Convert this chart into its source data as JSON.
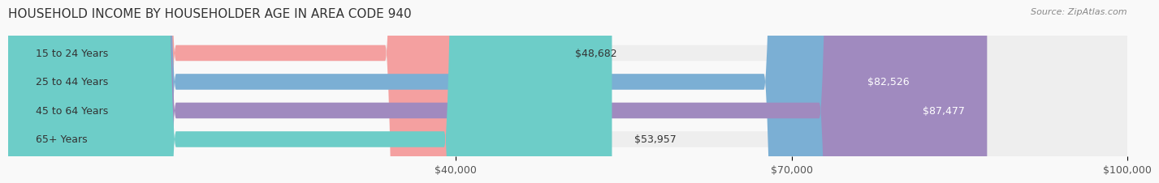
{
  "title": "HOUSEHOLD INCOME BY HOUSEHOLDER AGE IN AREA CODE 940",
  "source": "Source: ZipAtlas.com",
  "categories": [
    "15 to 24 Years",
    "25 to 44 Years",
    "45 to 64 Years",
    "65+ Years"
  ],
  "values": [
    48682,
    82526,
    87477,
    53957
  ],
  "bar_colors": [
    "#f4a0a0",
    "#7bafd4",
    "#a08abf",
    "#6dcdc8"
  ],
  "bar_background_color": "#eeeeee",
  "label_colors": [
    "#555555",
    "#ffffff",
    "#ffffff",
    "#555555"
  ],
  "x_min": 0,
  "x_max": 100000,
  "x_ticks": [
    40000,
    70000,
    100000
  ],
  "x_tick_labels": [
    "$40,000",
    "$70,000",
    "$100,000"
  ],
  "value_labels": [
    "$48,682",
    "$82,526",
    "$87,477",
    "$53,957"
  ],
  "background_color": "#f9f9f9",
  "bar_height": 0.55,
  "title_fontsize": 11,
  "source_fontsize": 8,
  "label_fontsize": 9,
  "value_fontsize": 9,
  "tick_fontsize": 9
}
